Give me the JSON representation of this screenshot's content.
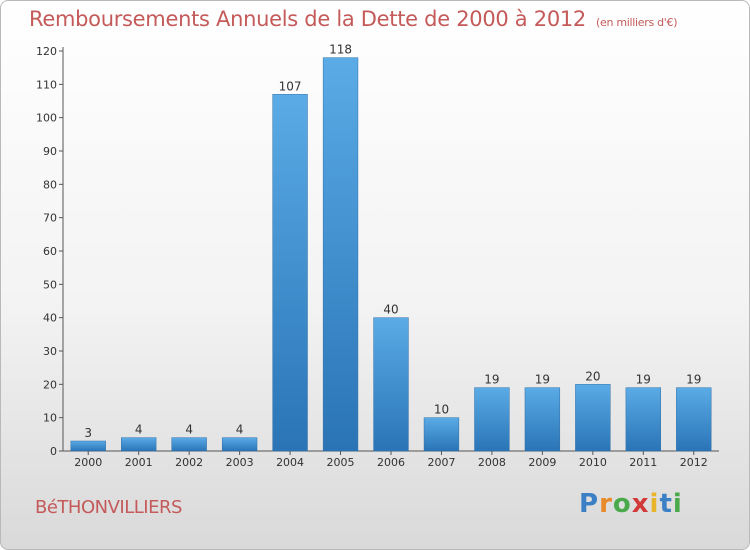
{
  "header": {
    "title": "Remboursements Annuels de la Dette de 2000 à 2012",
    "subtitle": "(en milliers d'€)"
  },
  "commune": "BéTHONVILLIERS",
  "logo": {
    "letters": [
      "P",
      "r",
      "o",
      "x",
      "i",
      "t",
      "i"
    ],
    "colors": [
      "#3b7fc4",
      "#e8892a",
      "#4aa94a",
      "#d23a3a",
      "#e8b52a",
      "#3b7fc4",
      "#4aa94a"
    ]
  },
  "chart_data": {
    "type": "bar",
    "categories": [
      "2000",
      "2001",
      "2002",
      "2003",
      "2004",
      "2005",
      "2006",
      "2007",
      "2008",
      "2009",
      "2010",
      "2011",
      "2012"
    ],
    "values": [
      3,
      4,
      4,
      4,
      107,
      118,
      40,
      10,
      19,
      19,
      20,
      19,
      19
    ],
    "data_labels": [
      "3",
      "4",
      "4",
      "4",
      "107",
      "118",
      "40",
      "10",
      "19",
      "19",
      "20",
      "19",
      "19"
    ],
    "title": "Remboursements Annuels de la Dette de 2000 à 2012",
    "subtitle": "(en milliers d'€)",
    "xlabel": "",
    "ylabel": "",
    "ylim": [
      0,
      120
    ],
    "yticks": [
      0,
      10,
      20,
      30,
      40,
      50,
      60,
      70,
      80,
      90,
      100,
      110,
      120
    ],
    "grid": false,
    "bar_color": "#3d8fd6"
  }
}
